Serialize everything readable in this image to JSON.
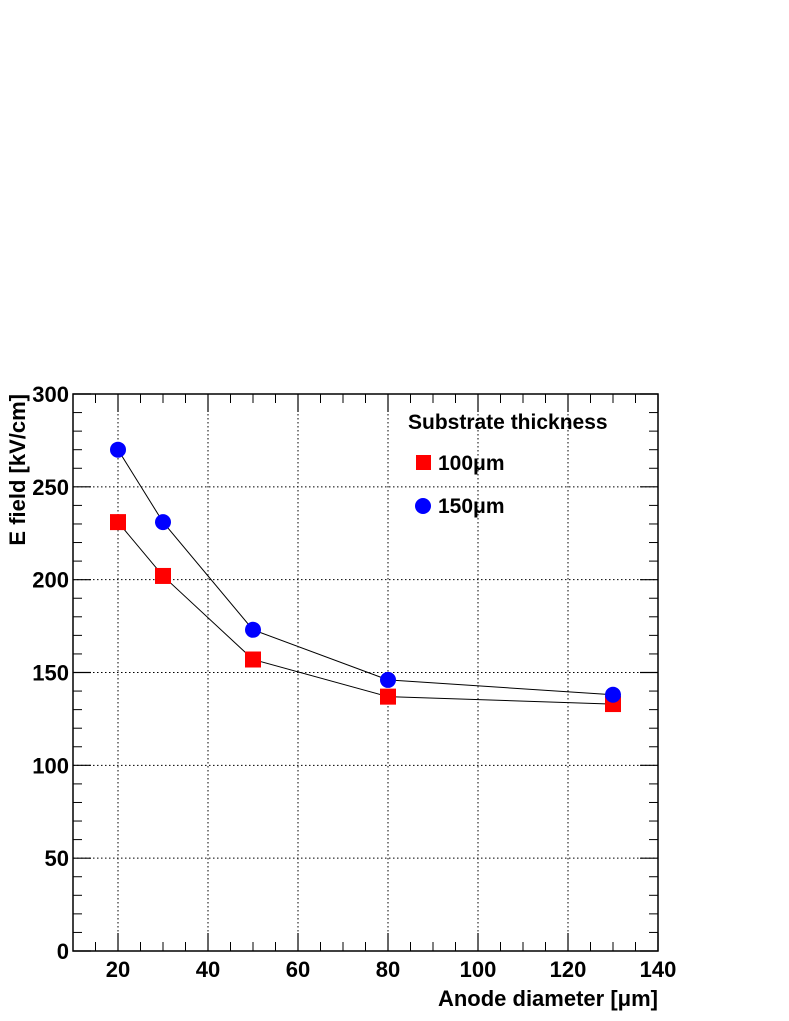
{
  "chart_data": {
    "type": "scatter",
    "title": "",
    "xlabel": "Anode diameter [μm]",
    "ylabel": "E field [kV/cm]",
    "xlim": [
      10,
      140
    ],
    "ylim": [
      0,
      300
    ],
    "xticks": [
      "20",
      "40",
      "60",
      "80",
      "100",
      "120",
      "140"
    ],
    "yticks": [
      "0",
      "50",
      "100",
      "150",
      "200",
      "250",
      "300"
    ],
    "grid": true,
    "legend": {
      "title": "Substrate thickness",
      "placement": "top-right"
    },
    "series": [
      {
        "name": "100μm",
        "marker": "square",
        "color": "#ff0000",
        "x": [
          20,
          30,
          50,
          80,
          130
        ],
        "y": [
          231,
          202,
          157,
          137,
          133
        ]
      },
      {
        "name": "150μm",
        "marker": "circle",
        "color": "#0000ff",
        "x": [
          20,
          30,
          50,
          80,
          130
        ],
        "y": [
          270,
          231,
          173,
          146,
          138
        ]
      }
    ]
  }
}
